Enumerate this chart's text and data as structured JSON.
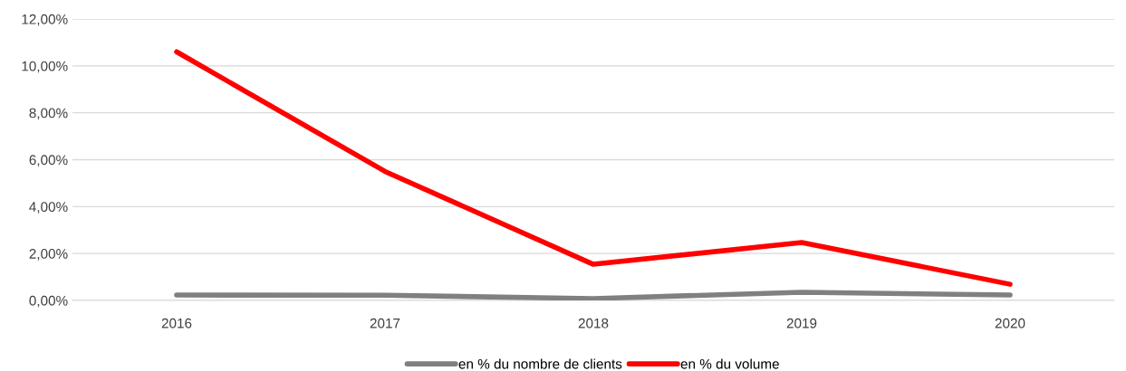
{
  "chart_data": {
    "type": "line",
    "categories": [
      "2016",
      "2017",
      "2018",
      "2019",
      "2020"
    ],
    "series": [
      {
        "name": "en % du nombre de clients",
        "color": "#808080",
        "values": [
          0.23,
          0.22,
          0.08,
          0.35,
          0.23
        ]
      },
      {
        "name": "en % du volume",
        "color": "#ff0000",
        "values": [
          10.6,
          5.5,
          1.54,
          2.47,
          0.69
        ]
      }
    ],
    "ylim": [
      0,
      12
    ],
    "yticks": [
      {
        "value": 0,
        "label": "0,00%"
      },
      {
        "value": 2,
        "label": "2,00%"
      },
      {
        "value": 4,
        "label": "4,00%"
      },
      {
        "value": 6,
        "label": "6,00%"
      },
      {
        "value": 8,
        "label": "8,00%"
      },
      {
        "value": 10,
        "label": "10,00%"
      },
      {
        "value": 12,
        "label": "12,00%"
      }
    ],
    "grid": "y",
    "legend": "bottom",
    "marker": "none",
    "line_style": "solid"
  }
}
